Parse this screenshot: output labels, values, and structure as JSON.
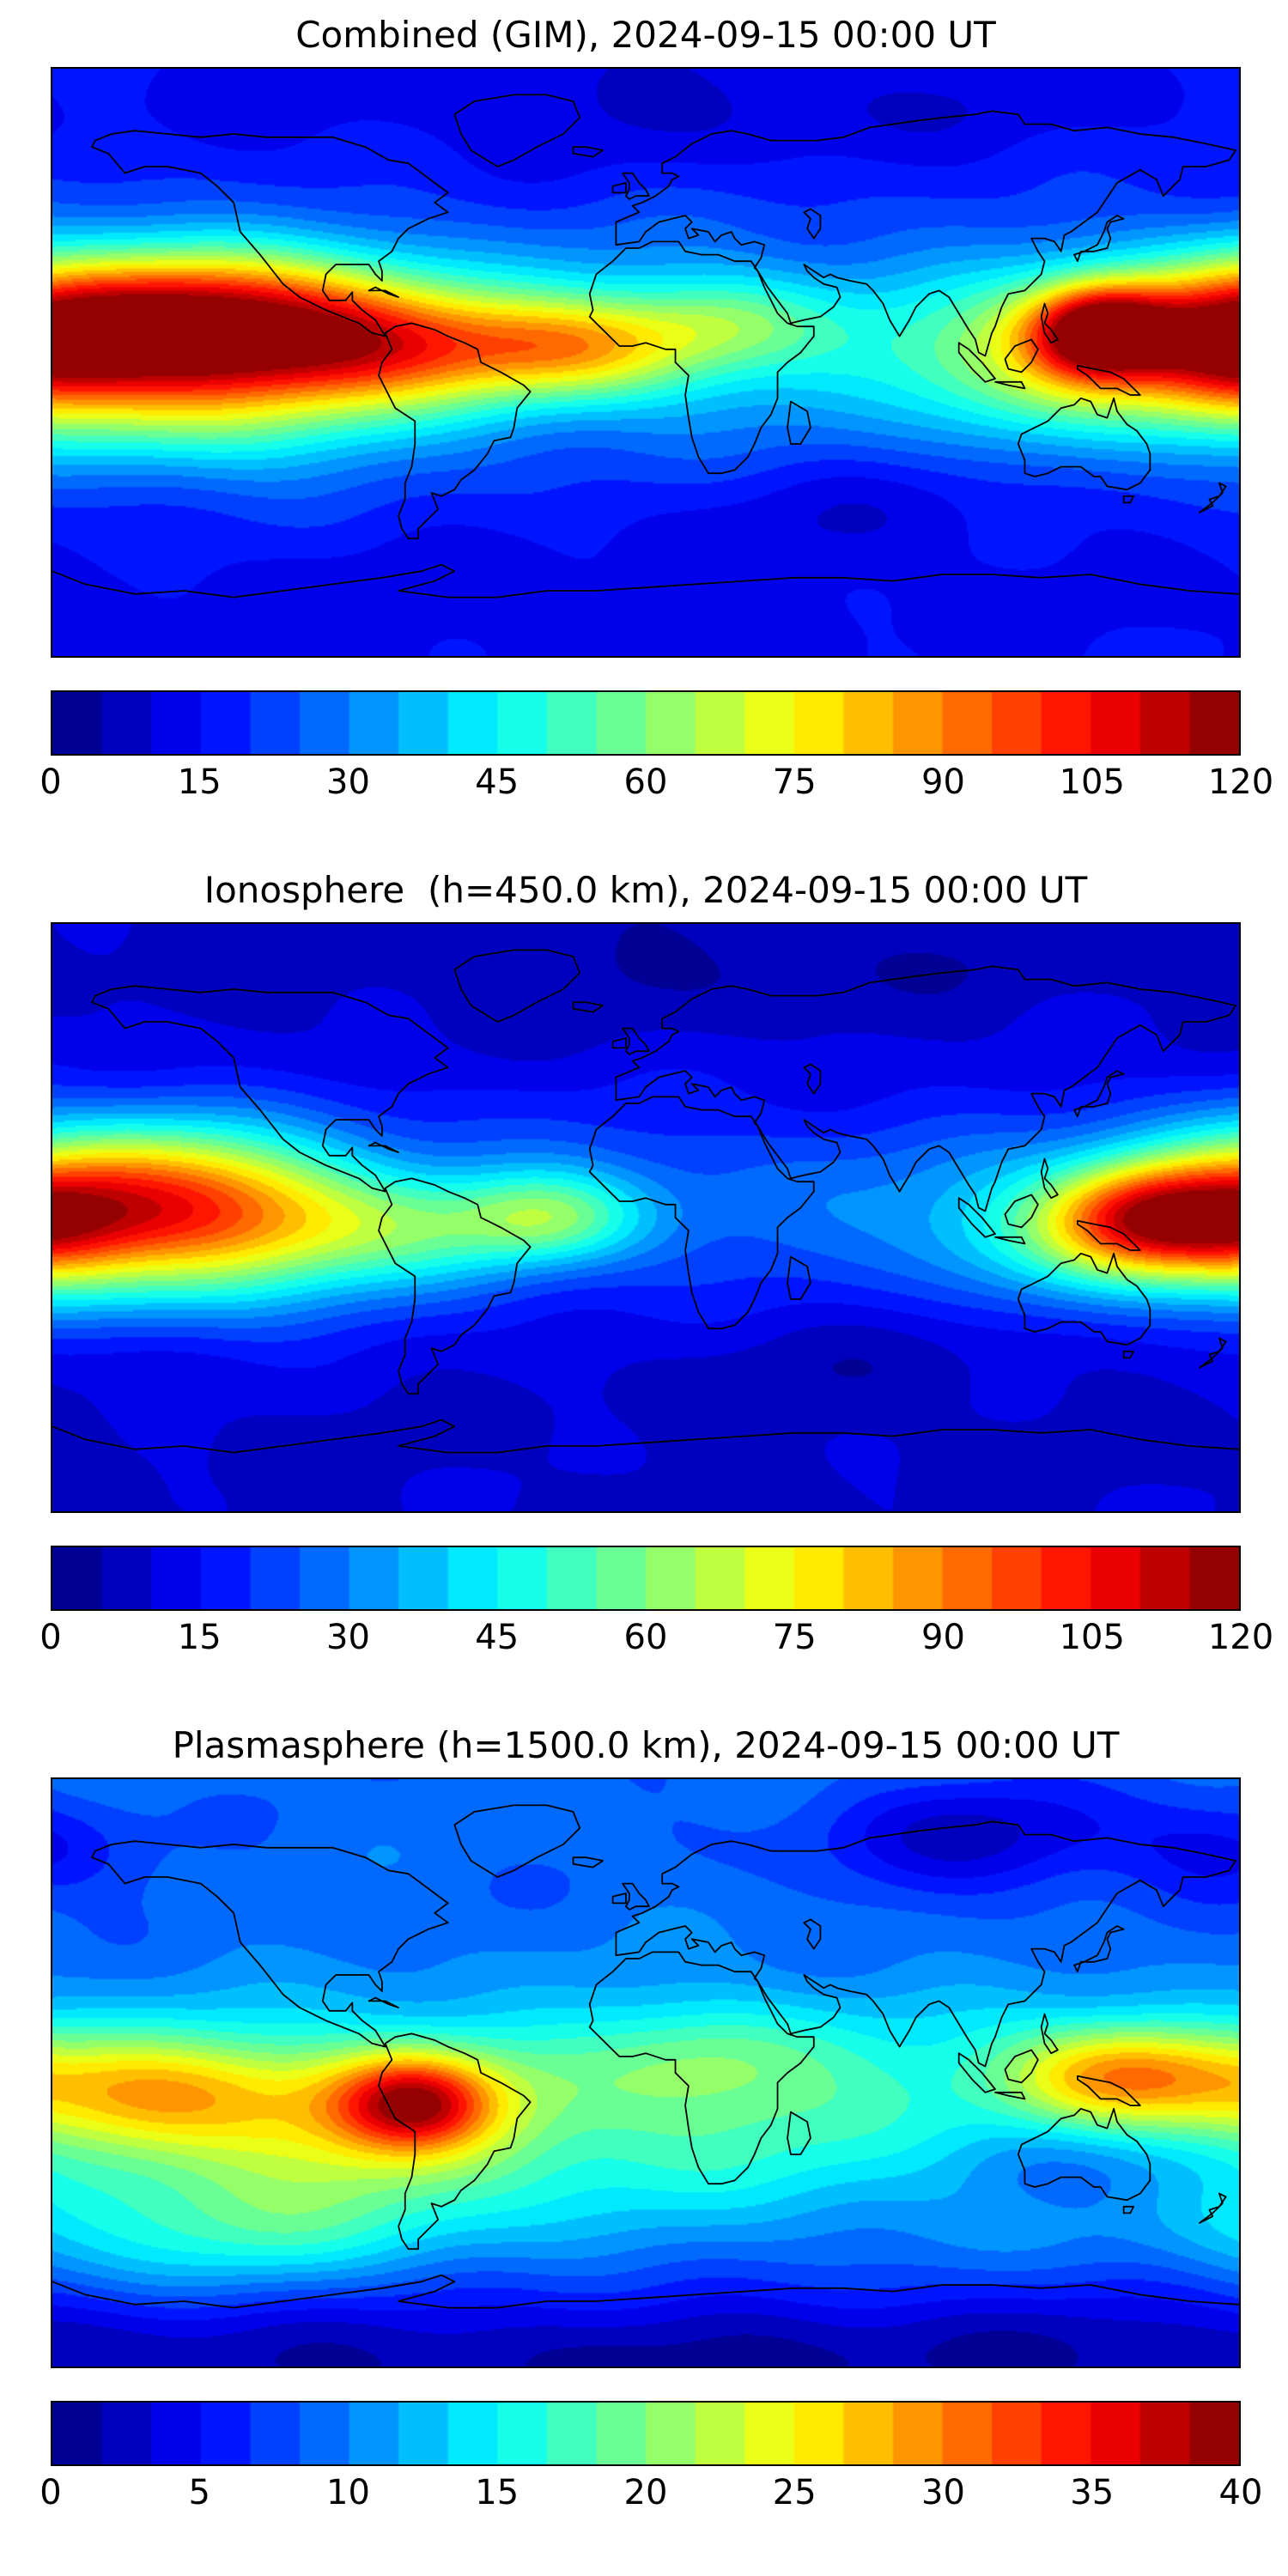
{
  "page": {
    "background": "#ffffff",
    "text_color": "#000000"
  },
  "chart_data": [
    {
      "type": "heatmap",
      "title": "Combined (GIM), 2024-09-15 00:00 UT",
      "projection": "equirectangular world map with coastlines",
      "colorbar": {
        "vmin": 0,
        "vmax": 120,
        "ticks": [
          0,
          15,
          30,
          45,
          60,
          75,
          90,
          105,
          120
        ],
        "n_levels": 24,
        "colormap": "jet"
      },
      "field_model": {
        "base": 15,
        "wiggle": 1.2,
        "blobs": [
          {
            "x": 0.09,
            "y": 0.44,
            "sx": 0.115,
            "sy": 0.09,
            "a": 88
          },
          {
            "x": 0.27,
            "y": 0.465,
            "sx": 0.09,
            "sy": 0.075,
            "a": 48
          },
          {
            "x": 0.44,
            "y": 0.475,
            "sx": 0.075,
            "sy": 0.06,
            "a": 40
          },
          {
            "x": 0.57,
            "y": 0.43,
            "sx": 0.06,
            "sy": 0.055,
            "a": 20
          },
          {
            "x": 0.885,
            "y": 0.445,
            "sx": 0.042,
            "sy": 0.055,
            "a": 70
          },
          {
            "x": 0.84,
            "y": 0.5,
            "sx": 0.085,
            "sy": 0.085,
            "a": 30
          },
          {
            "x": 0.99,
            "y": 0.48,
            "sx": 0.05,
            "sy": 0.08,
            "a": 30
          },
          {
            "x": 0.5,
            "y": 0.47,
            "sx": 0.55,
            "sy": 0.14,
            "a": 18
          },
          {
            "x": 0.13,
            "y": 0.6,
            "sx": 0.11,
            "sy": 0.08,
            "a": 18
          },
          {
            "x": 0.55,
            "y": 0.06,
            "sx": 0.22,
            "sy": 0.07,
            "a": -6
          },
          {
            "x": 0.67,
            "y": 0.74,
            "sx": 0.12,
            "sy": 0.08,
            "a": -6
          },
          {
            "x": 0.35,
            "y": 0.92,
            "sx": 0.25,
            "sy": 0.09,
            "a": -3
          }
        ]
      }
    },
    {
      "type": "heatmap",
      "title": "Ionosphere  (h=450.0 km), 2024-09-15 00:00 UT",
      "projection": "equirectangular world map with coastlines",
      "colorbar": {
        "vmin": 0,
        "vmax": 120,
        "ticks": [
          0,
          15,
          30,
          45,
          60,
          75,
          90,
          105,
          120
        ],
        "n_levels": 24,
        "colormap": "jet"
      },
      "field_model": {
        "base": 9,
        "wiggle": 1.1,
        "blobs": [
          {
            "x": 0.06,
            "y": 0.47,
            "sx": 0.1,
            "sy": 0.095,
            "a": 62
          },
          {
            "x": 0.17,
            "y": 0.5,
            "sx": 0.08,
            "sy": 0.08,
            "a": 28
          },
          {
            "x": 0.3,
            "y": 0.52,
            "sx": 0.08,
            "sy": 0.07,
            "a": 22
          },
          {
            "x": 0.42,
            "y": 0.5,
            "sx": 0.055,
            "sy": 0.055,
            "a": 30
          },
          {
            "x": 0.92,
            "y": 0.5,
            "sx": 0.055,
            "sy": 0.065,
            "a": 55
          },
          {
            "x": 0.84,
            "y": 0.53,
            "sx": 0.08,
            "sy": 0.08,
            "a": 22
          },
          {
            "x": 0.5,
            "y": 0.48,
            "sx": 0.55,
            "sy": 0.13,
            "a": 13
          },
          {
            "x": 0.12,
            "y": 0.63,
            "sx": 0.11,
            "sy": 0.07,
            "a": 10
          },
          {
            "x": 1.0,
            "y": 0.52,
            "sx": 0.05,
            "sy": 0.07,
            "a": 28
          },
          {
            "x": 0.55,
            "y": 0.07,
            "sx": 0.22,
            "sy": 0.07,
            "a": -4
          },
          {
            "x": 0.66,
            "y": 0.73,
            "sx": 0.12,
            "sy": 0.08,
            "a": -4
          }
        ]
      }
    },
    {
      "type": "heatmap",
      "title": "Plasmasphere (h=1500.0 km), 2024-09-15 00:00 UT",
      "projection": "equirectangular world map with coastlines",
      "colorbar": {
        "vmin": 0,
        "vmax": 40,
        "ticks": [
          0,
          5,
          10,
          15,
          20,
          25,
          30,
          35,
          40
        ],
        "n_levels": 24,
        "colormap": "jet"
      },
      "field_model": {
        "base": 9,
        "wiggle": 0.45,
        "blobs": [
          {
            "x": 0.305,
            "y": 0.55,
            "sx": 0.045,
            "sy": 0.055,
            "a": 15
          },
          {
            "x": 0.28,
            "y": 0.56,
            "sx": 0.1,
            "sy": 0.09,
            "a": 9
          },
          {
            "x": 0.08,
            "y": 0.53,
            "sx": 0.09,
            "sy": 0.07,
            "a": 13
          },
          {
            "x": 0.35,
            "y": 0.6,
            "sx": 0.3,
            "sy": 0.14,
            "a": 5
          },
          {
            "x": 0.68,
            "y": 0.55,
            "sx": 0.25,
            "sy": 0.12,
            "a": 5
          },
          {
            "x": 0.9,
            "y": 0.5,
            "sx": 0.07,
            "sy": 0.06,
            "a": 15
          },
          {
            "x": 0.55,
            "y": 0.47,
            "sx": 0.07,
            "sy": 0.07,
            "a": 5
          },
          {
            "x": 0.15,
            "y": 0.75,
            "sx": 0.13,
            "sy": 0.09,
            "a": 7
          },
          {
            "x": 0.78,
            "y": 0.1,
            "sx": 0.1,
            "sy": 0.07,
            "a": -6
          },
          {
            "x": 0.99,
            "y": 0.12,
            "sx": 0.06,
            "sy": 0.06,
            "a": -4
          },
          {
            "x": 0.86,
            "y": 0.65,
            "sx": 0.08,
            "sy": 0.06,
            "a": -5
          },
          {
            "x": 0.5,
            "y": 0.99,
            "sx": 0.8,
            "sy": 0.1,
            "a": -4
          }
        ]
      }
    }
  ]
}
